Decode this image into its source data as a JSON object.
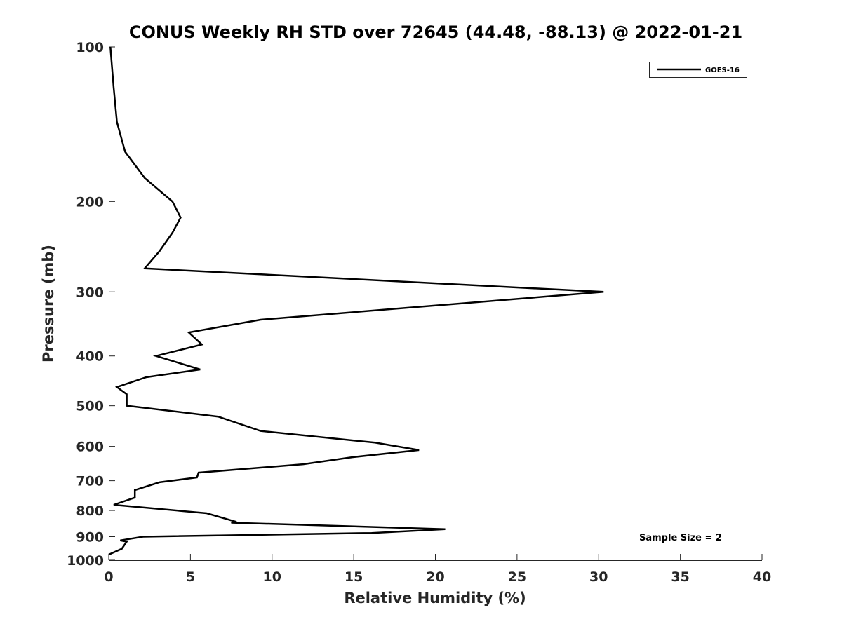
{
  "chart_data": {
    "type": "line",
    "title": "CONUS Weekly RH STD over 72645 (44.48, -88.13) @ 2022-01-21",
    "xlabel": "Relative Humidity (%)",
    "ylabel": "Pressure (mb)",
    "xlim": [
      0,
      40
    ],
    "ylim": [
      100,
      1000
    ],
    "y_scale": "log",
    "y_reversed": true,
    "grid": false,
    "legend_position": "top-right",
    "x_ticks": [
      0,
      5,
      10,
      15,
      20,
      25,
      30,
      35,
      40
    ],
    "x_tick_labels": [
      "0",
      "5",
      "10",
      "15",
      "20",
      "25",
      "30",
      "35",
      "40"
    ],
    "y_ticks": [
      100,
      200,
      300,
      400,
      500,
      600,
      700,
      800,
      900,
      1000
    ],
    "y_tick_labels": [
      "100",
      "200",
      "300",
      "400",
      "500",
      "600",
      "700",
      "800",
      "900",
      "1000"
    ],
    "series": [
      {
        "name": "GOES-16",
        "color": "#000000",
        "x": [
          0.1,
          0.3,
          0.5,
          1.0,
          2.2,
          3.9,
          4.4,
          3.9,
          3.1,
          2.2,
          30.3,
          9.3,
          4.9,
          5.7,
          2.9,
          5.6,
          2.3,
          0.5,
          1.1,
          1.1,
          6.7,
          9.3,
          16.3,
          19.0,
          14.9,
          11.9,
          5.5,
          5.4,
          3.1,
          1.6,
          1.6,
          0.3,
          6.0,
          7.7,
          7.5,
          20.6,
          16.1,
          2.1,
          0.7,
          1.1,
          0.8,
          0.0
        ],
        "y": [
          100,
          120,
          140,
          160,
          180,
          200,
          215,
          230,
          250,
          270,
          300,
          340,
          360,
          380,
          400,
          425,
          440,
          460,
          475,
          500,
          525,
          560,
          590,
          610,
          630,
          650,
          675,
          690,
          705,
          730,
          755,
          780,
          810,
          840,
          845,
          870,
          885,
          900,
          915,
          920,
          950,
          975
        ]
      }
    ]
  },
  "legend": {
    "entries": [
      "GOES-16"
    ]
  },
  "annotations": {
    "sample_size": "Sample Size = 2"
  }
}
